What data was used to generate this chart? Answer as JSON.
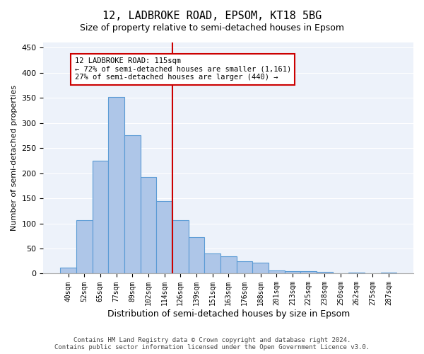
{
  "title": "12, LADBROKE ROAD, EPSOM, KT18 5BG",
  "subtitle": "Size of property relative to semi-detached houses in Epsom",
  "xlabel": "Distribution of semi-detached houses by size in Epsom",
  "ylabel": "Number of semi-detached properties",
  "bar_labels": [
    "40sqm",
    "52sqm",
    "65sqm",
    "77sqm",
    "89sqm",
    "102sqm",
    "114sqm",
    "126sqm",
    "139sqm",
    "151sqm",
    "163sqm",
    "176sqm",
    "188sqm",
    "201sqm",
    "213sqm",
    "225sqm",
    "238sqm",
    "250sqm",
    "262sqm",
    "275sqm",
    "287sqm"
  ],
  "bar_values": [
    12,
    107,
    225,
    352,
    275,
    192,
    145,
    107,
    72,
    40,
    35,
    25,
    22,
    7,
    5,
    5,
    4,
    1,
    2,
    1,
    2
  ],
  "bar_color": "#aec6e8",
  "bar_edge_color": "#5b9bd5",
  "vline_pos": 6.5,
  "vline_color": "#cc0000",
  "annotation_title": "12 LADBROKE ROAD: 115sqm",
  "annotation_line1": "← 72% of semi-detached houses are smaller (1,161)",
  "annotation_line2": "27% of semi-detached houses are larger (440) →",
  "annotation_box_color": "#cc0000",
  "ylim": [
    0,
    460
  ],
  "yticks": [
    0,
    50,
    100,
    150,
    200,
    250,
    300,
    350,
    400,
    450
  ],
  "background_color": "#edf2fa",
  "footer_line1": "Contains HM Land Registry data © Crown copyright and database right 2024.",
  "footer_line2": "Contains public sector information licensed under the Open Government Licence v3.0."
}
